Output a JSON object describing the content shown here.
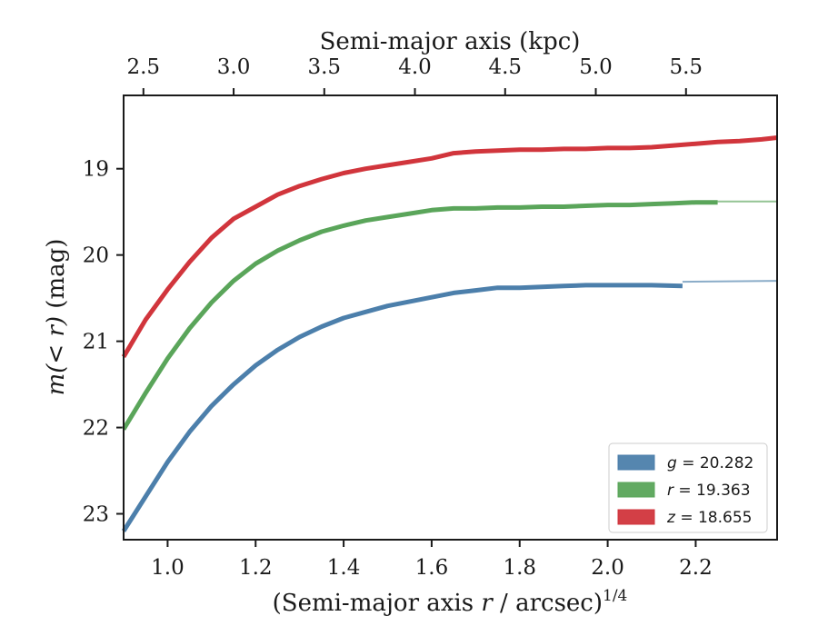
{
  "chart_data": {
    "type": "line",
    "xlabel": "(Semi-major axis r / arcsec)",
    "xlabel_prefix": "(Semi-major axis ",
    "xlabel_var": "r",
    "xlabel_suffix": " / arcsec)",
    "xlabel_sup": "1/4",
    "ylabel": "m(< r) (mag)",
    "ylabel_math": "m(< r)",
    "ylabel_unit": " (mag)",
    "top_xlabel": "Semi-major axis (kpc)",
    "xlim": [
      0.9,
      2.385
    ],
    "ylim": [
      23.3,
      18.15
    ],
    "y_inverted": true,
    "x_ticks": [
      1.0,
      1.2,
      1.4,
      1.6,
      1.8,
      2.0,
      2.2
    ],
    "x_tick_labels": [
      "1.0",
      "1.2",
      "1.4",
      "1.6",
      "1.8",
      "2.0",
      "2.2"
    ],
    "y_ticks": [
      19,
      20,
      21,
      22,
      23
    ],
    "y_tick_labels": [
      "19",
      "20",
      "21",
      "22",
      "23"
    ],
    "top_ticks": [
      2.5,
      3.0,
      3.5,
      4.0,
      4.5,
      5.0,
      5.5
    ],
    "top_tick_labels": [
      "2.5",
      "3.0",
      "3.5",
      "4.0",
      "4.5",
      "5.0",
      "5.5"
    ],
    "top_tick_positions_bottom_units": [
      0.945,
      1.15,
      1.356,
      1.562,
      1.767,
      1.973,
      2.178
    ],
    "grid": false,
    "legend_position": "lower-right",
    "series": [
      {
        "name": "g = 20.282",
        "var": "g",
        "label_value": " = 20.282",
        "color": "#4c7fab",
        "x": [
          0.9,
          0.95,
          1.0,
          1.05,
          1.1,
          1.15,
          1.2,
          1.25,
          1.3,
          1.35,
          1.4,
          1.45,
          1.5,
          1.55,
          1.6,
          1.65,
          1.7,
          1.75,
          1.8,
          1.85,
          1.9,
          1.95,
          2.0,
          2.05,
          2.1,
          2.17
        ],
        "y": [
          23.2,
          22.8,
          22.4,
          22.05,
          21.75,
          21.5,
          21.28,
          21.1,
          20.95,
          20.83,
          20.73,
          20.66,
          20.59,
          20.54,
          20.49,
          20.44,
          20.41,
          20.38,
          20.38,
          20.37,
          20.36,
          20.35,
          20.35,
          20.35,
          20.35,
          20.36
        ],
        "extension_x": [
          2.17,
          2.385
        ],
        "extension_y": [
          20.31,
          20.3
        ]
      },
      {
        "name": "r = 19.363",
        "var": "r",
        "label_value": " = 19.363",
        "color": "#5aa55a",
        "x": [
          0.9,
          0.95,
          1.0,
          1.05,
          1.1,
          1.15,
          1.2,
          1.25,
          1.3,
          1.35,
          1.4,
          1.45,
          1.5,
          1.55,
          1.6,
          1.65,
          1.7,
          1.75,
          1.8,
          1.85,
          1.9,
          1.95,
          2.0,
          2.05,
          2.1,
          2.15,
          2.2,
          2.25
        ],
        "y": [
          22.02,
          21.6,
          21.2,
          20.85,
          20.55,
          20.3,
          20.1,
          19.95,
          19.83,
          19.73,
          19.66,
          19.6,
          19.56,
          19.52,
          19.48,
          19.46,
          19.46,
          19.45,
          19.45,
          19.44,
          19.44,
          19.43,
          19.42,
          19.42,
          19.41,
          19.4,
          19.39,
          19.39
        ],
        "extension_x": [
          2.25,
          2.385
        ],
        "extension_y": [
          19.38,
          19.38
        ]
      },
      {
        "name": "z = 18.655",
        "var": "z",
        "label_value": " = 18.655",
        "color": "#d1353c",
        "x": [
          0.9,
          0.95,
          1.0,
          1.05,
          1.1,
          1.15,
          1.2,
          1.25,
          1.3,
          1.35,
          1.4,
          1.45,
          1.5,
          1.55,
          1.6,
          1.65,
          1.7,
          1.75,
          1.8,
          1.85,
          1.9,
          1.95,
          2.0,
          2.05,
          2.1,
          2.15,
          2.2,
          2.25,
          2.3,
          2.35,
          2.385
        ],
        "y": [
          21.18,
          20.75,
          20.4,
          20.08,
          19.8,
          19.58,
          19.44,
          19.3,
          19.2,
          19.12,
          19.05,
          19.0,
          18.96,
          18.92,
          18.88,
          18.82,
          18.8,
          18.79,
          18.78,
          18.78,
          18.77,
          18.77,
          18.76,
          18.76,
          18.75,
          18.73,
          18.71,
          18.69,
          18.68,
          18.66,
          18.64
        ]
      }
    ]
  }
}
